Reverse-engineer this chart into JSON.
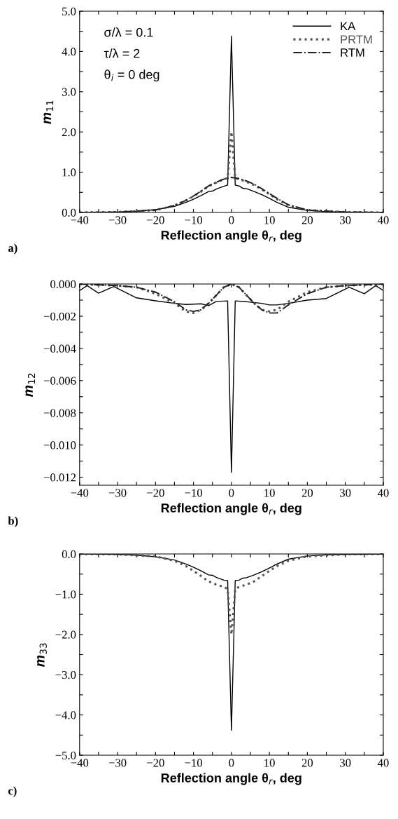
{
  "chart_data": [
    {
      "type": "line",
      "xlabel": "Reflection angle θ$_{r}$, deg",
      "ylabel": "m$_{11}$",
      "xlim": [
        -40,
        40
      ],
      "ylim": [
        0,
        5
      ],
      "xticks": [
        {
          "value": -40,
          "label": "−40"
        },
        {
          "value": -35,
          "label": null
        },
        {
          "value": -30,
          "label": "−30"
        },
        {
          "value": -25,
          "label": null
        },
        {
          "value": -20,
          "label": "−20"
        },
        {
          "value": -15,
          "label": null
        },
        {
          "value": -10,
          "label": "−10"
        },
        {
          "value": -5,
          "label": null
        },
        0,
        {
          "value": 5,
          "label": null
        },
        10,
        {
          "value": 15,
          "label": null
        },
        20,
        {
          "value": 25,
          "label": null
        },
        30,
        {
          "value": 35,
          "label": null
        },
        40
      ],
      "yticks": [
        {
          "value": 0,
          "label": "0.0"
        },
        {
          "value": 0.5,
          "label": null
        },
        {
          "value": 1,
          "label": "1.0"
        },
        {
          "value": 1.5,
          "label": null
        },
        {
          "value": 2,
          "label": "2.0"
        },
        {
          "value": 2.5,
          "label": null
        },
        {
          "value": 3,
          "label": "3.0"
        },
        {
          "value": 3.5,
          "label": null
        },
        {
          "value": 4,
          "label": "4.0"
        },
        {
          "value": 4.5,
          "label": null
        },
        {
          "value": 5,
          "label": "5.0"
        }
      ],
      "legend": "top right",
      "grid": false,
      "series": [
        {
          "name": "KA",
          "color": "#000000",
          "line_style": "solid",
          "x": [
            -40,
            -30,
            -25,
            -20,
            -15,
            -12,
            -10,
            -8,
            -6,
            -5,
            -4,
            -2,
            -1,
            -0.95,
            0,
            0.95,
            1,
            2,
            3,
            4,
            6,
            8,
            10,
            12,
            15,
            20,
            25,
            30,
            40
          ],
          "values": [
            0,
            0.01,
            0.03,
            0.07,
            0.15,
            0.25,
            0.33,
            0.42,
            0.52,
            0.53,
            0.58,
            0.65,
            0.68,
            0.85,
            4.38,
            0.85,
            0.68,
            0.66,
            0.6,
            0.59,
            0.52,
            0.44,
            0.35,
            0.25,
            0.13,
            0.05,
            0.02,
            0.01,
            0
          ]
        },
        {
          "name": "PRTM",
          "color": "#555555",
          "line_style": "dotted",
          "x": [
            -40,
            -30,
            -20,
            -15,
            -12,
            -10,
            -8,
            -6,
            -4,
            -2,
            -1,
            0,
            1,
            2,
            4,
            6,
            8,
            10,
            12,
            15,
            20,
            30,
            40
          ],
          "values": [
            0,
            0.01,
            0.06,
            0.17,
            0.3,
            0.4,
            0.52,
            0.65,
            0.74,
            0.83,
            0.85,
            2.0,
            0.85,
            0.83,
            0.76,
            0.68,
            0.57,
            0.45,
            0.33,
            0.18,
            0.06,
            0.01,
            0
          ]
        },
        {
          "name": "RTM",
          "color": "#222222",
          "line_style": "dashdot",
          "x": [
            -40,
            -30,
            -20,
            -15,
            -12,
            -10,
            -8,
            -6,
            -4,
            -2,
            0,
            2,
            4,
            6,
            8,
            10,
            12,
            15,
            20,
            30,
            40
          ],
          "values": [
            0,
            0.01,
            0.06,
            0.17,
            0.3,
            0.41,
            0.53,
            0.66,
            0.75,
            0.83,
            0.87,
            0.84,
            0.78,
            0.7,
            0.59,
            0.47,
            0.35,
            0.19,
            0.06,
            0.01,
            0
          ]
        }
      ],
      "annotations": [
        "σ/λ = 0.1",
        "τ/λ = 2",
        "θ$_{i}$ = 0 deg",
        "a)"
      ]
    },
    {
      "type": "line",
      "xlabel": "Reflection angle θ$_{r}$, deg",
      "ylabel": "m$_{12}$",
      "xlim": [
        -40,
        40
      ],
      "ylim": [
        -0.0125,
        0
      ],
      "xticks": [
        {
          "value": -40,
          "label": "−40"
        },
        {
          "value": -35,
          "label": null
        },
        {
          "value": -30,
          "label": "−30"
        },
        {
          "value": -25,
          "label": null
        },
        {
          "value": -20,
          "label": "−20"
        },
        {
          "value": -15,
          "label": null
        },
        {
          "value": -10,
          "label": "−10"
        },
        {
          "value": -5,
          "label": null
        },
        0,
        {
          "value": 5,
          "label": null
        },
        10,
        {
          "value": 15,
          "label": null
        },
        20,
        {
          "value": 25,
          "label": null
        },
        30,
        {
          "value": 35,
          "label": null
        },
        40
      ],
      "yticks": [
        {
          "value": -0.012,
          "label": "−0.012"
        },
        {
          "value": -0.011,
          "label": null
        },
        {
          "value": -0.01,
          "label": "−0.010"
        },
        {
          "value": -0.009,
          "label": null
        },
        {
          "value": -0.008,
          "label": "−0.008"
        },
        {
          "value": -0.007,
          "label": null
        },
        {
          "value": -0.006,
          "label": "−0.006"
        },
        {
          "value": -0.005,
          "label": null
        },
        {
          "value": -0.004,
          "label": "−0.004"
        },
        {
          "value": -0.003,
          "label": null
        },
        {
          "value": -0.002,
          "label": "−0.002"
        },
        {
          "value": -0.001,
          "label": null
        },
        {
          "value": 0,
          "label": "0.000"
        }
      ],
      "grid": false,
      "series": [
        {
          "color": "#000000",
          "line_style": "solid",
          "x": [
            -40,
            -38,
            -35,
            -31,
            -25,
            -20,
            -15,
            -12,
            -8,
            -6,
            -4,
            -1,
            0,
            1,
            4,
            8,
            10,
            12,
            15,
            20,
            25,
            31,
            35,
            38,
            40
          ],
          "values": [
            -0.0004,
            -0.0001,
            -0.00057,
            -0.00016,
            -0.00086,
            -0.00104,
            -0.0012,
            -0.00127,
            -0.00123,
            -0.00134,
            -0.00108,
            -0.00105,
            -0.0117,
            -0.00105,
            -0.0011,
            -0.0012,
            -0.0013,
            -0.0013,
            -0.0012,
            -0.001,
            -0.0009,
            -0.0002,
            -0.0006,
            -0.0001,
            -0.0004
          ]
        },
        {
          "color": "#555555",
          "line_style": "dotted",
          "x": [
            -40,
            -30,
            -25,
            -20,
            -15,
            -12,
            -10,
            -8,
            -6,
            -4,
            -2,
            0,
            2,
            4,
            6,
            8,
            10,
            12,
            15,
            20,
            25,
            30,
            40
          ],
          "values": [
            0,
            -0.0001,
            -0.0002,
            -0.0006,
            -0.0012,
            -0.0017,
            -0.0018,
            -0.0016,
            -0.0012,
            -0.0007,
            -0.0002,
            0,
            -0.0002,
            -0.0007,
            -0.0012,
            -0.0016,
            -0.0017,
            -0.0016,
            -0.0011,
            -0.0005,
            -0.0002,
            -0.0001,
            0
          ]
        },
        {
          "color": "#222222",
          "line_style": "dashdot",
          "x": [
            -40,
            -30,
            -25,
            -20,
            -15,
            -12,
            -10,
            -8,
            -6,
            -4,
            -2,
            0,
            2,
            4,
            6,
            8,
            10,
            12,
            15,
            20,
            25,
            30,
            40
          ],
          "values": [
            0,
            -0.0001,
            -0.0002,
            -0.0005,
            -0.0011,
            -0.0016,
            -0.0017,
            -0.0016,
            -0.0012,
            -0.0007,
            -0.0002,
            0,
            -0.0002,
            -0.0007,
            -0.0012,
            -0.0016,
            -0.0018,
            -0.0018,
            -0.0013,
            -0.0006,
            -0.0002,
            -0.0001,
            0
          ]
        }
      ],
      "annotations": [
        "b)"
      ]
    },
    {
      "type": "line",
      "xlabel": "Reflection angle θ$_{r}$, deg",
      "ylabel": "m$_{33}$",
      "xlim": [
        -40,
        40
      ],
      "ylim": [
        -5,
        0
      ],
      "xticks": [
        {
          "value": -40,
          "label": "−40"
        },
        {
          "value": -35,
          "label": null
        },
        {
          "value": -30,
          "label": "−30"
        },
        {
          "value": -25,
          "label": null
        },
        {
          "value": -20,
          "label": "−20"
        },
        {
          "value": -15,
          "label": null
        },
        {
          "value": -10,
          "label": "−10"
        },
        {
          "value": -5,
          "label": null
        },
        0,
        {
          "value": 5,
          "label": null
        },
        10,
        {
          "value": 15,
          "label": null
        },
        20,
        {
          "value": 25,
          "label": null
        },
        30,
        {
          "value": 35,
          "label": null
        },
        40
      ],
      "yticks": [
        {
          "value": -5,
          "label": "−5.0"
        },
        {
          "value": -4.5,
          "label": null
        },
        {
          "value": -4,
          "label": "−4.0"
        },
        {
          "value": -3.5,
          "label": null
        },
        {
          "value": -3,
          "label": "−3.0"
        },
        {
          "value": -2.5,
          "label": null
        },
        {
          "value": -2,
          "label": "−2.0"
        },
        {
          "value": -1.5,
          "label": null
        },
        {
          "value": -1,
          "label": "−1.0"
        },
        {
          "value": -0.5,
          "label": null
        },
        {
          "value": 0,
          "label": "0.0"
        }
      ],
      "grid": false,
      "series": [
        {
          "color": "#000000",
          "line_style": "solid",
          "x": [
            -40,
            -30,
            -25,
            -20,
            -15,
            -12,
            -10,
            -8,
            -6,
            -5,
            -4,
            -2,
            -1,
            -0.95,
            0,
            0.95,
            1,
            2,
            3,
            4,
            6,
            8,
            10,
            12,
            15,
            20,
            25,
            30,
            40
          ],
          "values": [
            0,
            -0.01,
            -0.03,
            -0.07,
            -0.15,
            -0.25,
            -0.33,
            -0.42,
            -0.52,
            -0.53,
            -0.58,
            -0.65,
            -0.66,
            -0.85,
            -4.38,
            -0.85,
            -0.66,
            -0.65,
            -0.6,
            -0.59,
            -0.52,
            -0.44,
            -0.35,
            -0.25,
            -0.13,
            -0.05,
            -0.02,
            -0.01,
            0
          ]
        },
        {
          "color": "#555555",
          "line_style": "dotted",
          "x": [
            -40,
            -30,
            -20,
            -15,
            -12,
            -10,
            -8,
            -6,
            -4,
            -2,
            -1,
            0,
            1,
            2,
            4,
            6,
            8,
            10,
            12,
            15,
            20,
            30,
            40
          ],
          "values": [
            0,
            -0.01,
            -0.06,
            -0.17,
            -0.3,
            -0.42,
            -0.55,
            -0.68,
            -0.76,
            -0.82,
            -0.87,
            -2.0,
            -0.87,
            -0.82,
            -0.76,
            -0.68,
            -0.55,
            -0.42,
            -0.3,
            -0.17,
            -0.06,
            -0.01,
            0
          ]
        }
      ],
      "annotations": [
        "c)"
      ]
    }
  ]
}
